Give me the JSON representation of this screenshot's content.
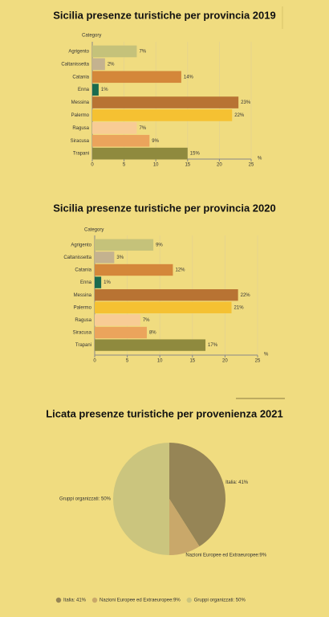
{
  "chart_data": [
    {
      "type": "bar",
      "orientation": "horizontal",
      "title": "Sicilia presenze turistiche per provincia 2019",
      "y_label": "Category",
      "x_label": "%",
      "categories": [
        "Agrigento",
        "Caltanissetta",
        "Catania",
        "Enna",
        "Messina",
        "Palermo",
        "Ragusa",
        "Siracusa",
        "Trapani"
      ],
      "values": [
        7,
        2,
        14,
        1,
        23,
        22,
        7,
        9,
        15
      ],
      "value_labels": [
        "7%",
        "2%",
        "14%",
        "1%",
        "23%",
        "22%",
        "7%",
        "9%",
        "15%"
      ],
      "colors": [
        "#c5c27a",
        "#c4b28f",
        "#d4873a",
        "#1a6b4f",
        "#b87333",
        "#f5c132",
        "#f8cc95",
        "#eba45c",
        "#8f8a3e"
      ],
      "xlim": [
        0,
        25
      ],
      "xticks": [
        0,
        5,
        10,
        15,
        20,
        25
      ],
      "grid": true
    },
    {
      "type": "bar",
      "orientation": "horizontal",
      "title": "Sicilia presenze turistiche per provincia 2020",
      "y_label": "Category",
      "x_label": "%",
      "categories": [
        "Agrigento",
        "Caltanissetta",
        "Catania",
        "Enna",
        "Messina",
        "Palermo",
        "Ragusa",
        "Siracusa",
        "Trapani"
      ],
      "values": [
        9,
        3,
        12,
        1,
        22,
        21,
        7,
        8,
        17
      ],
      "value_labels": [
        "9%",
        "3%",
        "12%",
        "1%",
        "22%",
        "21%",
        "7%",
        "8%",
        "17%"
      ],
      "colors": [
        "#c5c27a",
        "#c4b28f",
        "#d4873a",
        "#1a6b4f",
        "#b87333",
        "#f5c132",
        "#f8cc95",
        "#eba45c",
        "#8f8a3e"
      ],
      "xlim": [
        0,
        25
      ],
      "xticks": [
        0,
        5,
        10,
        15,
        20,
        25
      ],
      "grid": true
    },
    {
      "type": "pie",
      "title": "Licata presenze turistiche per provenienza 2021",
      "categories": [
        "Italia",
        "Nazioni Europee ed Extraeuropee",
        "Gruppi organizzati"
      ],
      "values": [
        41,
        9,
        50
      ],
      "value_labels": [
        "Italia: 41%",
        "Nazioni Europee ed Extraeuropee:9%",
        "Gruppi organizzati: 50%"
      ],
      "colors": [
        "#968556",
        "#c9a86a",
        "#cbc57e"
      ],
      "legend": "bottom"
    }
  ]
}
